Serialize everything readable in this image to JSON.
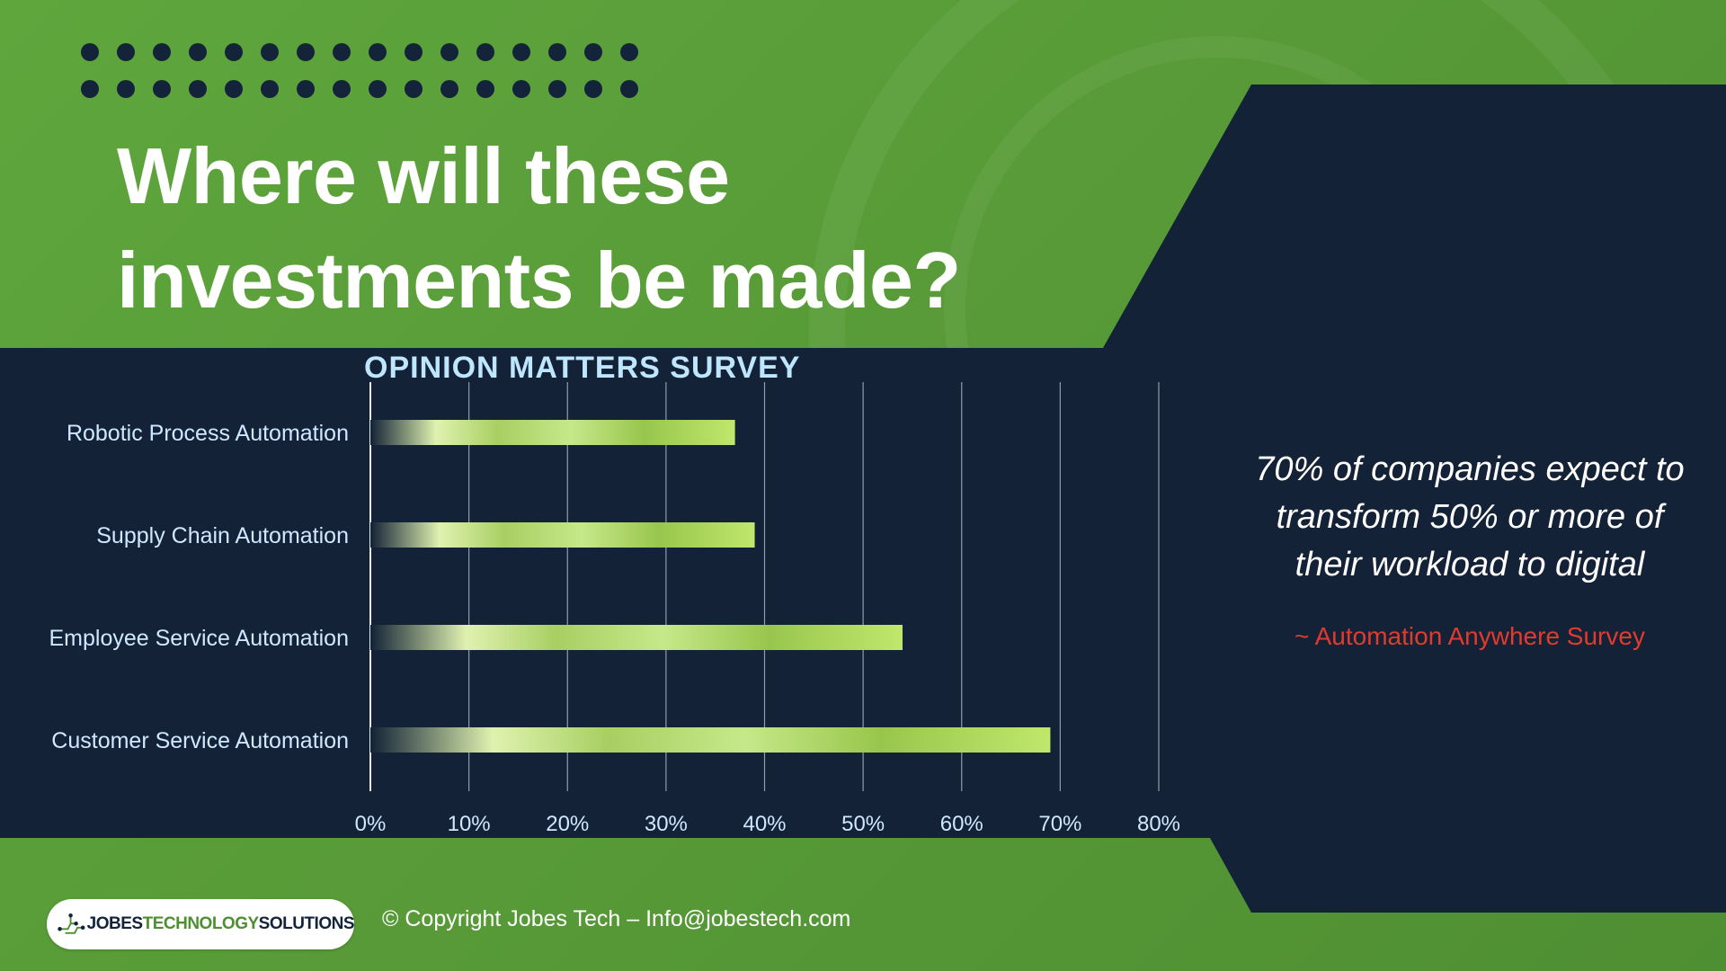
{
  "slide": {
    "title_line1": "Where will these",
    "title_line2": "investments be made?",
    "quote_line1": "70% of companies expect to",
    "quote_line2": "transform 50% or more of",
    "quote_line3": "their workload to digital",
    "source": "~ Automation Anywhere Survey",
    "footer": "© Copyright Jobes Tech – Info@jobestech.com",
    "logo_text_a": "JOBES",
    "logo_text_b": "TECHNOLOGY",
    "logo_text_c": "SOLUTIONS"
  },
  "colors": {
    "green_bg": "#5a9e3a",
    "navy": "#132236",
    "dot": "#13233a",
    "survey_title": "#bfe6ff",
    "label": "#cfe8ff",
    "grid": "#c9d2dc",
    "source": "#e23b2e",
    "bar_light": "#d9f0a8",
    "bar_mid": "#9bc84f",
    "bar_end": "#b8e46a"
  },
  "chart_data": {
    "type": "bar",
    "orientation": "horizontal",
    "title": "OPINION MATTERS SURVEY",
    "categories": [
      "Robotic Process Automation",
      "Supply Chain Automation",
      "Employee Service Automation",
      "Customer Service Automation"
    ],
    "values": [
      37,
      39,
      54,
      69
    ],
    "xlim": [
      0,
      80
    ],
    "xticks": [
      "0%",
      "10%",
      "20%",
      "30%",
      "40%",
      "50%",
      "60%",
      "70%",
      "80%"
    ],
    "grid": true,
    "legend": "none"
  }
}
